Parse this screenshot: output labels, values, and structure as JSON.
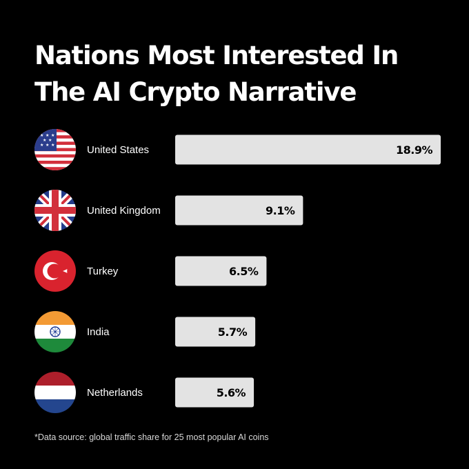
{
  "title_lines": [
    "Nations Most Interested In",
    "The AI Crypto Narrative"
  ],
  "footnote": "*Data source: global traffic share for 25 most popular AI coins",
  "colors": {
    "background": "#000000",
    "bar": "#e3e3e3",
    "bar_text": "#000000",
    "label_text": "#ffffff"
  },
  "chart_data": {
    "type": "bar",
    "orientation": "horizontal",
    "title": "Nations Most Interested In The AI Crypto Narrative",
    "categories": [
      "United States",
      "United Kingdom",
      "Turkey",
      "India",
      "Netherlands"
    ],
    "values": [
      18.9,
      9.1,
      6.5,
      5.7,
      5.6
    ],
    "value_labels": [
      "18.9%",
      "9.1%",
      "6.5%",
      "5.7%",
      "5.6%"
    ],
    "unit": "%",
    "flags": [
      "us-flag-icon",
      "uk-flag-icon",
      "turkey-flag-icon",
      "india-flag-icon",
      "netherlands-flag-icon"
    ],
    "xlim": [
      0,
      18.9
    ],
    "grid": false,
    "legend": "none"
  }
}
